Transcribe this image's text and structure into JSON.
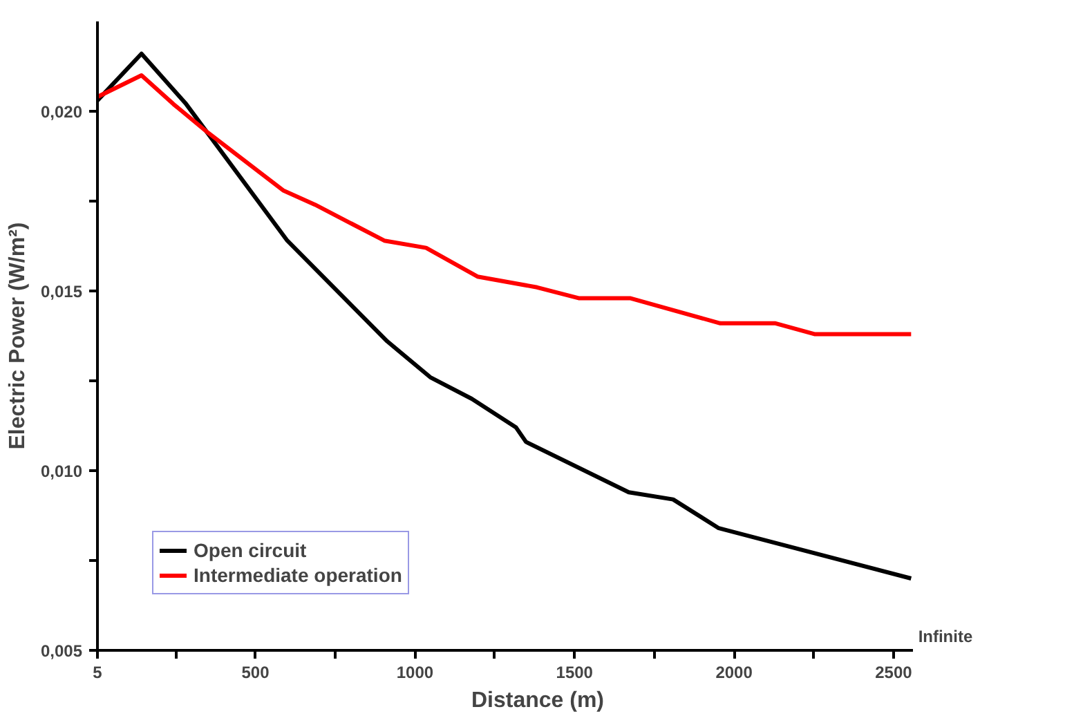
{
  "chart_data": {
    "type": "line",
    "xlabel": "Distance (m)",
    "ylabel": "Electric Power (W/m²)",
    "xlim": [
      5,
      2560
    ],
    "ylim": [
      0.005,
      0.0225
    ],
    "xticks": [
      5,
      {
        "value": 250,
        "label": null
      },
      500,
      {
        "value": 750,
        "label": null
      },
      1000,
      {
        "value": 1250,
        "label": null
      },
      1500,
      {
        "value": 1750,
        "label": null
      },
      2000,
      {
        "value": 2250,
        "label": null
      },
      2500
    ],
    "yticks": [
      {
        "value": 0.005,
        "label": "0,005"
      },
      {
        "value": 0.0075,
        "label": null
      },
      {
        "value": 0.01,
        "label": "0,010"
      },
      {
        "value": 0.0125,
        "label": null
      },
      {
        "value": 0.015,
        "label": "0,015"
      },
      {
        "value": 0.0175,
        "label": null
      },
      {
        "value": 0.02,
        "label": "0,020"
      }
    ],
    "series": [
      {
        "name": "Open circuit",
        "color": "#000000",
        "x": [
          5,
          143,
          283,
          600,
          913,
          1048,
          1178,
          1317,
          1348,
          1670,
          1809,
          1952,
          2555
        ],
        "values": [
          0.0203,
          0.0216,
          0.0202,
          0.0164,
          0.0136,
          0.0126,
          0.012,
          0.0112,
          0.0108,
          0.0094,
          0.0092,
          0.0084,
          0.007
        ]
      },
      {
        "name": "Intermediate operation",
        "color": "#ff0000",
        "x": [
          5,
          143,
          243,
          352,
          587,
          687,
          904,
          1035,
          1196,
          1383,
          1513,
          1674,
          1957,
          2130,
          2252,
          2555
        ],
        "values": [
          0.0204,
          0.021,
          0.0202,
          0.0194,
          0.0178,
          0.0174,
          0.0164,
          0.0162,
          0.0154,
          0.0151,
          0.0148,
          0.0148,
          0.0141,
          0.0141,
          0.0138,
          0.0138
        ]
      }
    ],
    "annotations": [
      "Infinite"
    ],
    "legend": "bottom left",
    "grid": false,
    "marker": "none",
    "line_style": "solid"
  }
}
